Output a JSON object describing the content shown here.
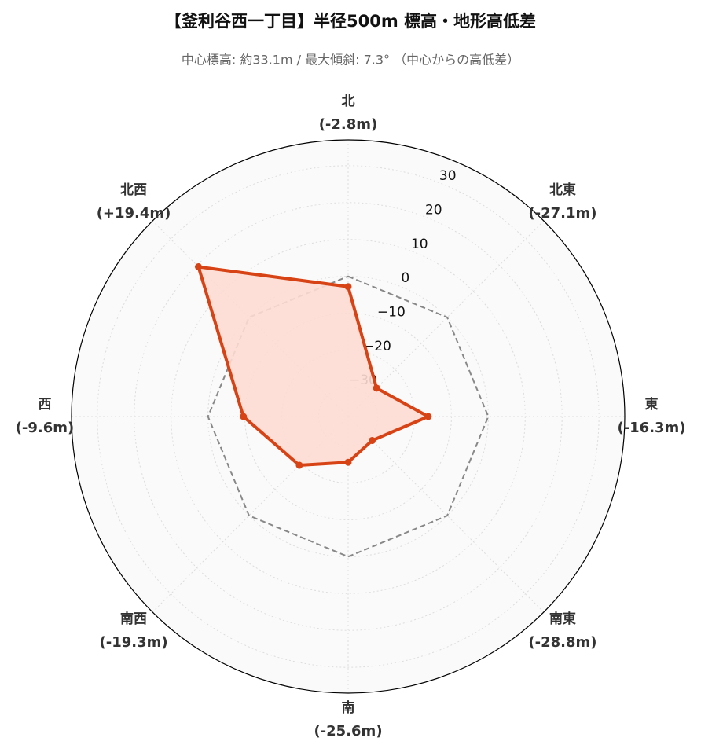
{
  "chart_data": {
    "type": "radar",
    "title": "【釜利谷西一丁目】半径500m 標高・地形高低差",
    "subtitle": "中心標高: 約33.1m / 最大傾斜: 7.3° （中心からの高低差）",
    "categories": [
      "北",
      "北東",
      "東",
      "南東",
      "南",
      "南西",
      "西",
      "北西"
    ],
    "series": [
      {
        "color": "#d84315",
        "fill": "#fddcd3",
        "values": [
          -2.8,
          -27.1,
          -16.3,
          -28.8,
          -25.6,
          -19.3,
          -9.6,
          19.4
        ],
        "value_labels": [
          "(-2.8m)",
          "(-27.1m)",
          "(-16.3m)",
          "(-28.8m)",
          "(-25.6m)",
          "(-19.3m)",
          "(-9.6m)",
          "(+19.4m)"
        ]
      }
    ],
    "ylim": [
      -38,
      37
    ],
    "yticks": [
      {
        "value": -30,
        "label": "−30"
      },
      {
        "value": -20,
        "label": "−20"
      },
      {
        "value": -10,
        "label": "−10"
      },
      0,
      10,
      20,
      30
    ],
    "baseline": 0,
    "grid": true
  }
}
